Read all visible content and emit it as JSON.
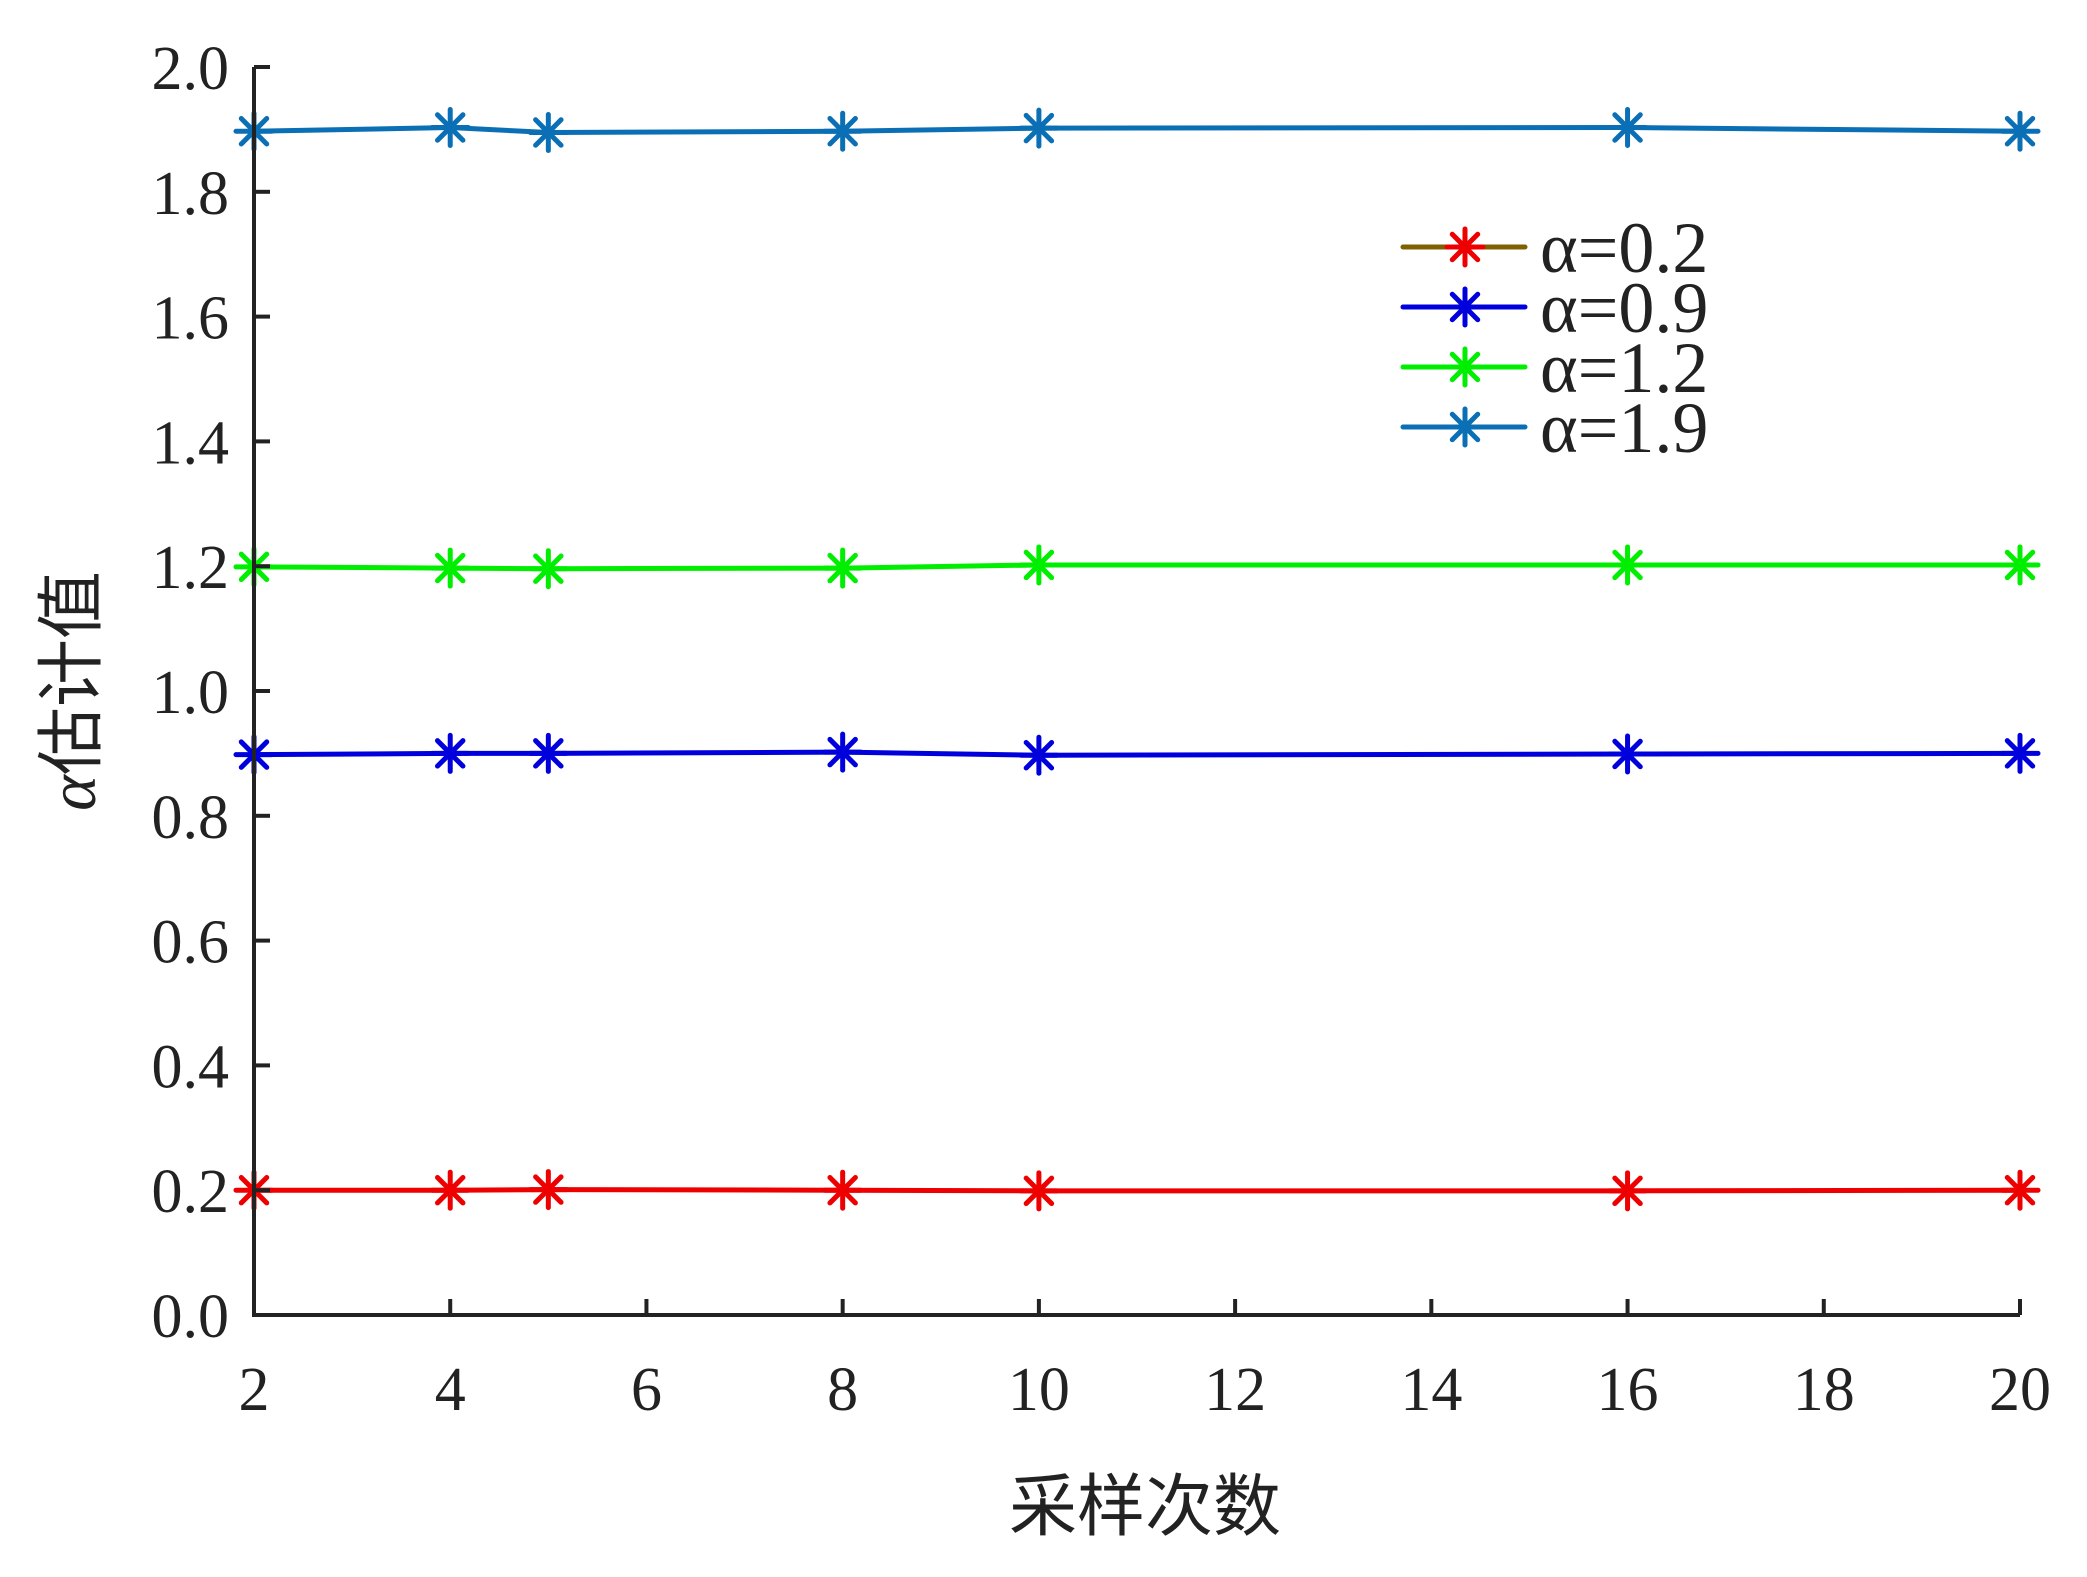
{
  "chart_data": {
    "type": "line",
    "xlabel": "采样次数",
    "ylabel_symbol": "α",
    "ylabel": "估计值",
    "xlim": [
      2,
      20
    ],
    "ylim": [
      0.0,
      2.0
    ],
    "xticks": [
      "2",
      "4",
      "6",
      "8",
      "10",
      "12",
      "14",
      "16",
      "18",
      "20"
    ],
    "yticks": [
      "0.0",
      "0.2",
      "0.4",
      "0.6",
      "0.8",
      "1.0",
      "1.2",
      "1.4",
      "1.6",
      "1.8",
      "2.0"
    ],
    "grid": false,
    "legend_position": "top-right",
    "marker": "asterisk",
    "x": [
      2,
      4,
      5,
      8,
      10,
      16,
      20
    ],
    "series": [
      {
        "name": "α=0.2",
        "color": "#ee0000",
        "legend_line_color": "#806000",
        "values": [
          0.2,
          0.2,
          0.201,
          0.2,
          0.199,
          0.199,
          0.2
        ]
      },
      {
        "name": "α=0.9",
        "color": "#0000dd",
        "values": [
          0.898,
          0.9,
          0.9,
          0.902,
          0.897,
          0.899,
          0.9
        ]
      },
      {
        "name": "α=1.2",
        "color": "#00ee00",
        "values": [
          1.199,
          1.197,
          1.196,
          1.197,
          1.202,
          1.202,
          1.202
        ]
      },
      {
        "name": "α=1.9",
        "color": "#0a6fb5",
        "values": [
          1.897,
          1.903,
          1.895,
          1.897,
          1.902,
          1.903,
          1.897
        ]
      }
    ]
  }
}
